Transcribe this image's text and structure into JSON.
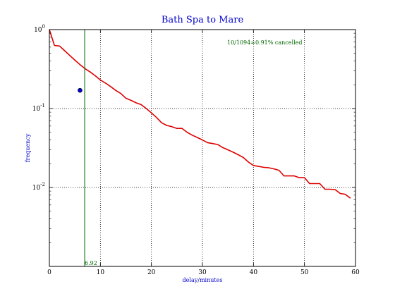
{
  "chart_data": {
    "type": "line",
    "title": "Bath Spa to Mare",
    "xlabel": "delay/minutes",
    "ylabel": "frequency",
    "xlim": [
      0,
      60
    ],
    "ylim": [
      0.001,
      1
    ],
    "yscale": "log",
    "grid": true,
    "x_ticks": [
      0,
      10,
      20,
      30,
      40,
      50,
      60
    ],
    "x_tick_labels": [
      "0",
      "10",
      "20",
      "30",
      "40",
      "50",
      "60"
    ],
    "y_ticks": [
      1,
      0.1,
      0.01
    ],
    "y_tick_labels": [
      {
        "base": "10",
        "exp": "0"
      },
      {
        "base": "10",
        "exp": "-1"
      },
      {
        "base": "10",
        "exp": "-2"
      }
    ],
    "series": [
      {
        "color": "#dd0000",
        "x": [
          0,
          1,
          2,
          3,
          4,
          5,
          6,
          7,
          8,
          9,
          10,
          11,
          12,
          13,
          14,
          15,
          16,
          17,
          18,
          19,
          20,
          21,
          22,
          23,
          24,
          25,
          26,
          27,
          28,
          29,
          30,
          31,
          32,
          33,
          34,
          35,
          36,
          37,
          38,
          39,
          40,
          41,
          42,
          43,
          44,
          45,
          46,
          47,
          48,
          49,
          50,
          51,
          52,
          53,
          54,
          55,
          56,
          57,
          58,
          59
        ],
        "y": [
          1.0,
          0.63,
          0.62,
          0.54,
          0.47,
          0.41,
          0.36,
          0.32,
          0.29,
          0.26,
          0.23,
          0.21,
          0.19,
          0.17,
          0.155,
          0.135,
          0.127,
          0.118,
          0.112,
          0.1,
          0.088,
          0.077,
          0.066,
          0.061,
          0.059,
          0.056,
          0.056,
          0.05,
          0.046,
          0.043,
          0.04,
          0.037,
          0.036,
          0.035,
          0.032,
          0.03,
          0.028,
          0.026,
          0.024,
          0.021,
          0.019,
          0.0185,
          0.018,
          0.0178,
          0.0172,
          0.0165,
          0.014,
          0.014,
          0.014,
          0.0133,
          0.0133,
          0.0112,
          0.0112,
          0.0112,
          0.0095,
          0.0095,
          0.0094,
          0.0084,
          0.0082,
          0.0073
        ]
      }
    ],
    "point": {
      "x": 6,
      "y": 0.17,
      "color": "#0000cc"
    },
    "vline": {
      "x": 6.92,
      "label": "6.92",
      "color": "#006600"
    },
    "annotation": {
      "text": "10/1094=0.91% cancelled",
      "color": "#006600"
    }
  }
}
